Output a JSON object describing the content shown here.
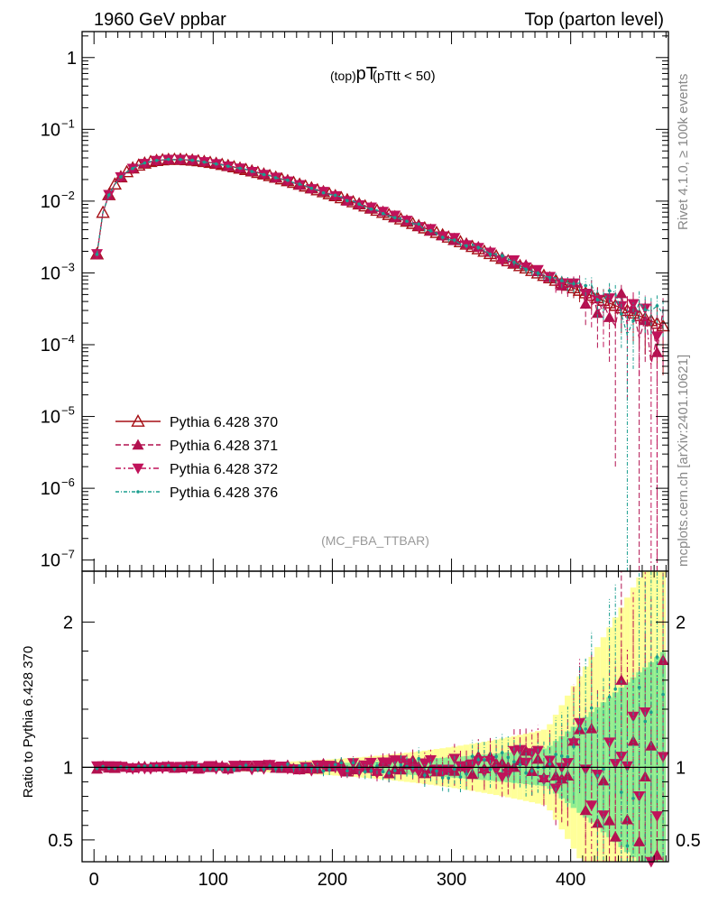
{
  "header": {
    "left": "1960 GeV ppbar",
    "right": "Top (parton level)"
  },
  "side": {
    "rivet": "Rivet 4.1.0, ≥ 100k events",
    "mcplots": "mcplots.cern.ch [arXiv:2401.10621]"
  },
  "colors": {
    "s370": "#a50f15",
    "s371": "#b2114f",
    "s372": "#c0125a",
    "s376": "#1a9e8f",
    "band_yellow": "#ffff99",
    "band_green": "#90ee90"
  },
  "chart_data": [
    {
      "id": "main",
      "type": "line",
      "title": "pT",
      "title_sub1": "(top)",
      "title_sub2": "(pTtt < 50)",
      "watermark": "(MC_FBA_TTBAR)",
      "xlabel": "",
      "ylabel": "",
      "yscale": "log",
      "xlim": [
        -10,
        482
      ],
      "ylim": [
        7e-08,
        2.3
      ],
      "yticks": [
        {
          "v": 1,
          "label": "1"
        },
        {
          "v": 0.1,
          "label": "10",
          "exp": "−1"
        },
        {
          "v": 0.01,
          "label": "10",
          "exp": "−2"
        },
        {
          "v": 0.001,
          "label": "10",
          "exp": "−3"
        },
        {
          "v": 0.0001,
          "label": "10",
          "exp": "−4"
        },
        {
          "v": 1e-05,
          "label": "10",
          "exp": "−5"
        },
        {
          "v": 1e-06,
          "label": "10",
          "exp": "−6"
        },
        {
          "v": 1e-07,
          "label": "10",
          "exp": "−7"
        }
      ],
      "legend": "left",
      "series": [
        {
          "name": "Pythia 6.428 370",
          "color_key": "s370",
          "marker": "open-up",
          "dash": "",
          "reference": true
        },
        {
          "name": "Pythia 6.428 371",
          "color_key": "s371",
          "marker": "up",
          "dash": "6,3"
        },
        {
          "name": "Pythia 6.428 372",
          "color_key": "s372",
          "marker": "down",
          "dash": "6,3,2,3"
        },
        {
          "name": "Pythia 6.428 376",
          "color_key": "s376",
          "marker": "dot",
          "dash": "4,2,1,2"
        }
      ],
      "model": {
        "shape": "x^1.3 * exp(-x/52)",
        "x_min": 2.5,
        "x_max": 477.5,
        "bin_width": 5,
        "norm_peak": 0.038,
        "scatter_seed": 7
      },
      "dropout_x": {
        "s376": [
          387.5
        ]
      }
    },
    {
      "id": "ratio",
      "type": "line",
      "ylabel": "Ratio to Pythia 6.428 370",
      "xlim": [
        -10,
        482
      ],
      "ylim": [
        0.35,
        2.35
      ],
      "xticks": [
        0,
        100,
        200,
        300,
        400
      ],
      "yticks": [
        {
          "v": 2,
          "label": "2"
        },
        {
          "v": 1,
          "label": "1"
        },
        {
          "v": 0.5,
          "label": "0.5"
        }
      ],
      "reference_line": 1,
      "bands": {
        "yellow": "statistical uncertainty (outer)",
        "green": "statistical uncertainty (inner)"
      }
    }
  ]
}
